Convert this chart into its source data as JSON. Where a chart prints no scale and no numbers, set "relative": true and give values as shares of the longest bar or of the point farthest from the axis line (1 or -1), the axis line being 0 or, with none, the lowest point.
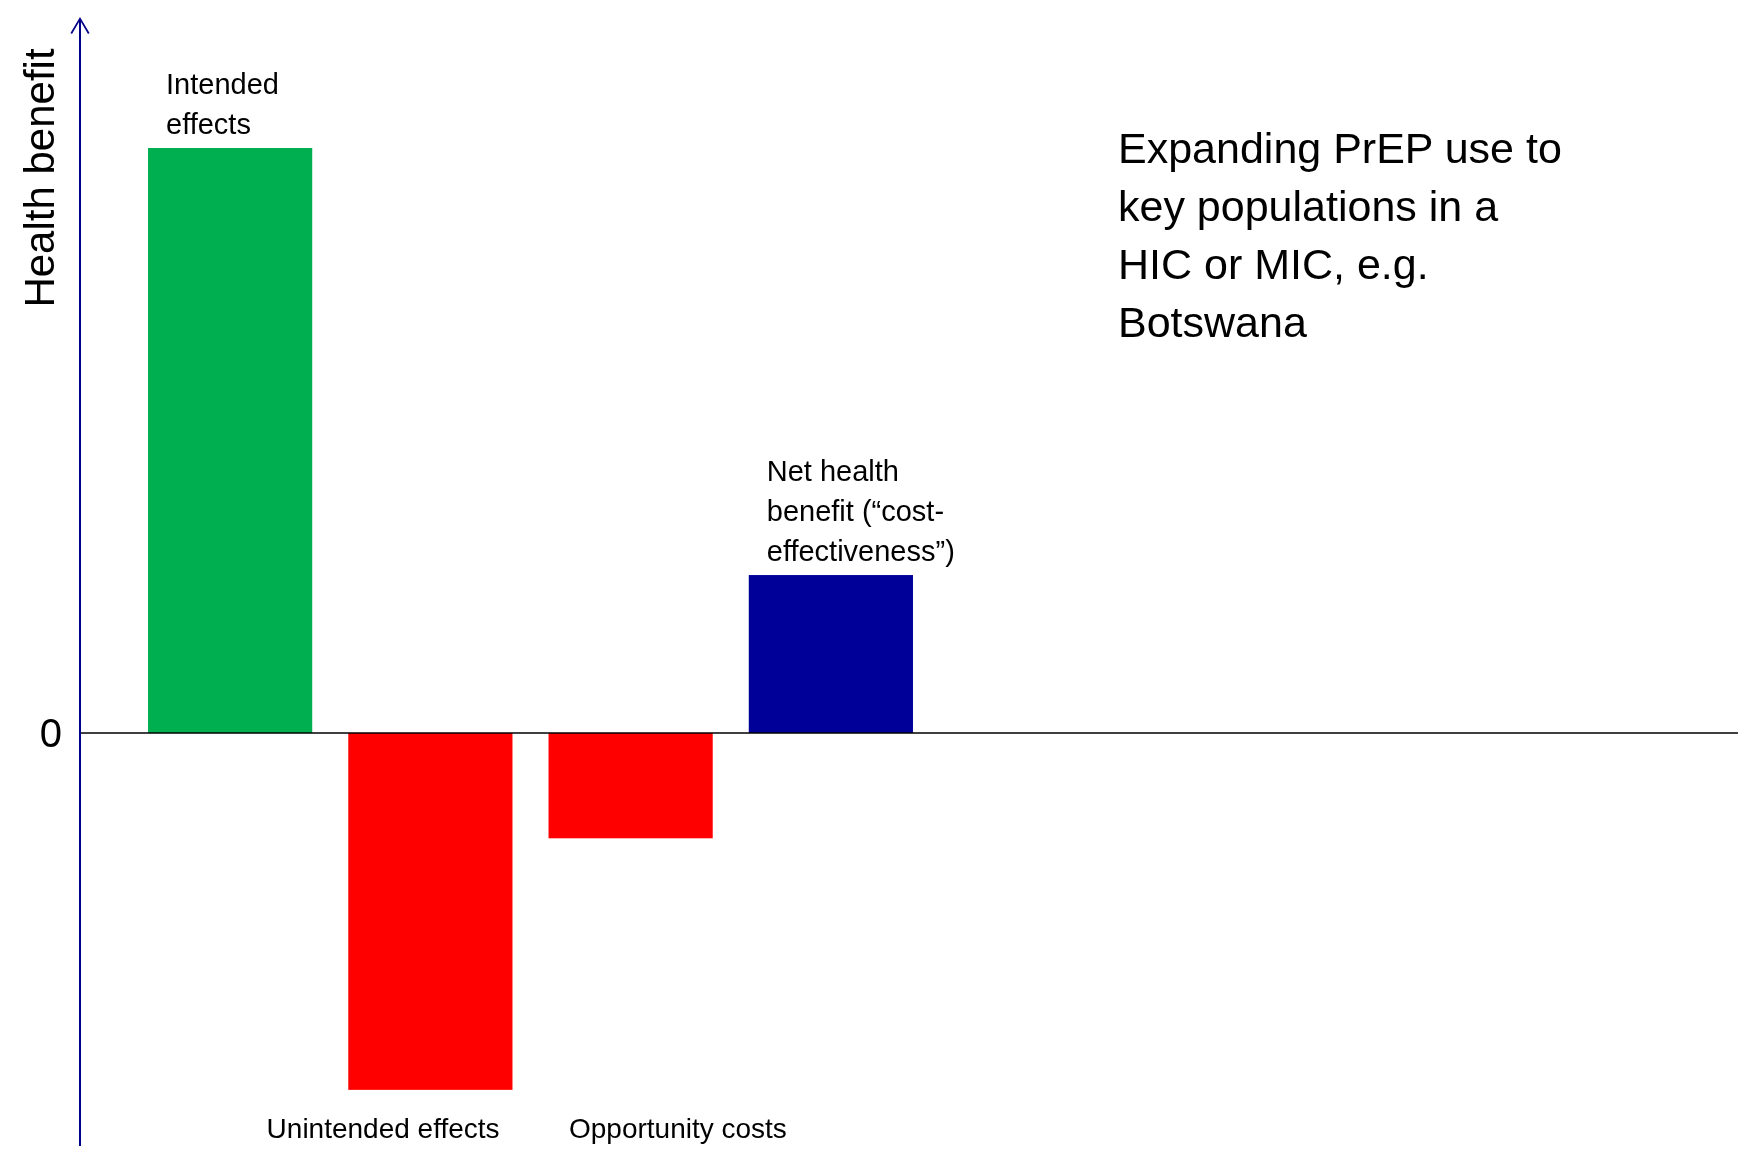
{
  "chart_data": {
    "type": "bar",
    "relative": true,
    "title": "Expanding PrEP use to key populations in a HIC or MIC, e.g. Botswana",
    "ylabel": "Health benefit",
    "categories": [
      "Intended effects",
      "Unintended effects",
      "Opportunity costs",
      "Net health benefit (“cost-effectiveness”)"
    ],
    "values": [
      1,
      -0.61,
      -0.18,
      0.27
    ],
    "colors": [
      "#00b050",
      "#ff0000",
      "#ff0000",
      "#000099"
    ],
    "annotations": [
      "0"
    ],
    "grid": false,
    "legend": false
  }
}
